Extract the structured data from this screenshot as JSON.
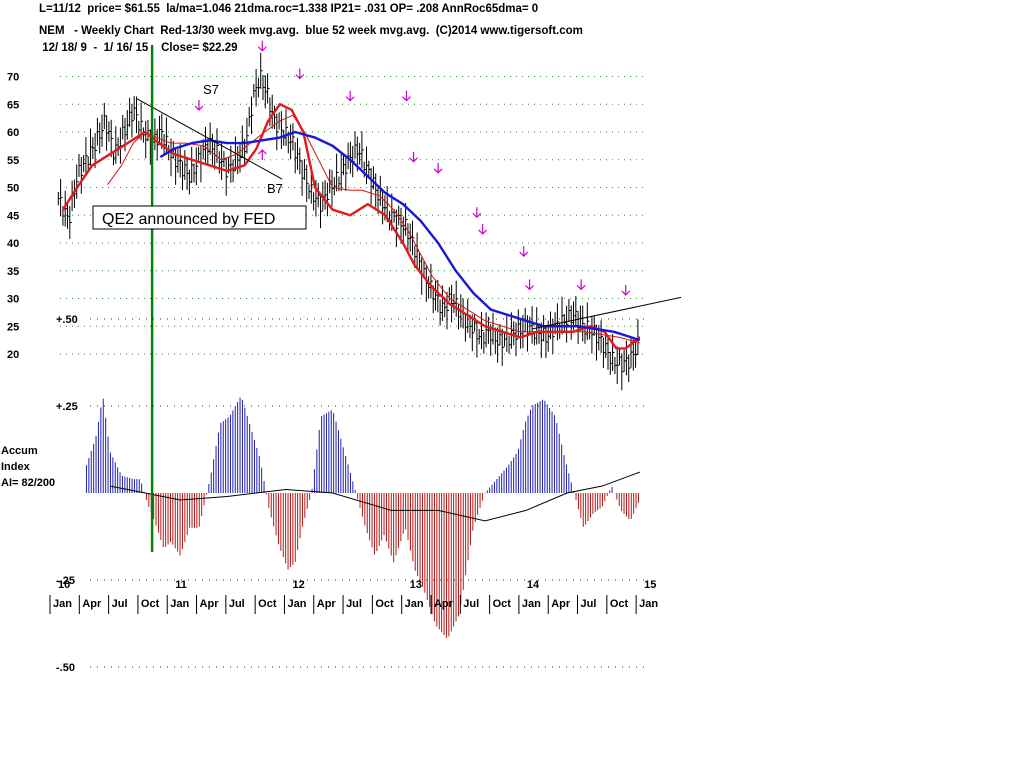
{
  "header": {
    "line1": "L=11/12  price= $61.55  la/ma=1.046 21dma.roc=1.338 IP21= .031 OP= .208 AnnRoc65dma= 0",
    "line2": "NEM   - Weekly Chart  Red-13/30 week mvg.avg.  blue 52 week mvg.avg.  (C)2014 www.tigersoft.com",
    "line3": " 12/ 18/ 9  -  1/ 16/ 15    Close= $22.29"
  },
  "chart_data": {
    "type": "line",
    "title": "NEM   - Weekly Chart",
    "price_axis": {
      "ticks": [
        20,
        25,
        30,
        35,
        40,
        45,
        50,
        55,
        60,
        65,
        70
      ],
      "tick_labels": [
        "20",
        "25",
        "30",
        "35",
        "40",
        "45",
        "50",
        "55",
        "60",
        "65",
        "70"
      ],
      "ylim": [
        15,
        75
      ]
    },
    "accum_axis": {
      "ticks": [
        0.5,
        0.25,
        -0.25,
        -0.5
      ],
      "tick_labels": [
        "+.50",
        "+.25",
        "-.25",
        "-.50"
      ],
      "ylim": [
        -0.5,
        0.5
      ]
    },
    "year_labels": [
      "10",
      "11",
      "12",
      "13",
      "14",
      "15"
    ],
    "month_labels": [
      "Jan",
      "Apr",
      "Jul",
      "Oct",
      "Jan",
      "Apr",
      "Jul",
      "Oct",
      "Jan",
      "Apr",
      "Jul",
      "Oct",
      "Jan",
      "Apr",
      "Jul",
      "Oct",
      "Jan",
      "Apr",
      "Jul",
      "Oct",
      "Jan"
    ],
    "time_range": [
      2010.0,
      2015.05
    ],
    "price_series": {
      "name": "NEM",
      "x": [
        2009.96,
        2010.05,
        2010.12,
        2010.2,
        2010.28,
        2010.36,
        2010.44,
        2010.52,
        2010.6,
        2010.68,
        2010.76,
        2010.84,
        2010.92,
        2011.0,
        2011.08,
        2011.16,
        2011.24,
        2011.32,
        2011.4,
        2011.48,
        2011.56,
        2011.62,
        2011.68,
        2011.74,
        2011.8,
        2011.88,
        2011.96,
        2012.04,
        2012.12,
        2012.2,
        2012.28,
        2012.36,
        2012.44,
        2012.52,
        2012.6,
        2012.68,
        2012.76,
        2012.84,
        2012.92,
        2013.0,
        2013.08,
        2013.16,
        2013.24,
        2013.32,
        2013.4,
        2013.48,
        2013.56,
        2013.64,
        2013.72,
        2013.8,
        2013.88,
        2013.96,
        2014.04,
        2014.12,
        2014.2,
        2014.28,
        2014.36,
        2014.44,
        2014.52,
        2014.6,
        2014.68,
        2014.76,
        2014.84,
        2014.92
      ],
      "y": [
        48,
        44,
        52,
        55,
        58,
        62,
        56,
        60,
        64,
        60,
        58,
        60,
        56,
        54,
        52,
        55,
        58,
        56,
        53,
        55,
        58,
        66,
        70,
        67,
        62,
        60,
        58,
        53,
        49,
        47,
        50,
        52,
        55,
        57,
        53,
        49,
        46,
        44,
        43,
        39,
        34,
        31,
        28,
        30,
        27,
        25,
        23,
        24,
        22,
        23,
        24,
        25,
        24,
        23,
        25,
        26,
        27,
        25,
        24,
        22,
        19,
        18,
        19,
        22.29
      ]
    },
    "ma_13": {
      "name": "Red-13/30 week mvg.avg.",
      "x": [
        2010.38,
        2010.5,
        2010.6,
        2010.7,
        2010.8,
        2010.92,
        2011.05,
        2011.2,
        2011.35,
        2011.48,
        2011.6,
        2011.72,
        2011.85,
        2011.96,
        2012.06,
        2012.18,
        2012.3,
        2012.45,
        2012.55,
        2012.7,
        2012.82,
        2012.95,
        2013.05,
        2013.15,
        2013.3,
        2013.45,
        2013.6,
        2013.75,
        2013.9,
        2014.02,
        2014.15,
        2014.3,
        2014.45,
        2014.6,
        2014.75,
        2014.92
      ],
      "y": [
        50.5,
        54,
        58,
        60,
        59,
        58,
        58,
        57.5,
        55,
        56,
        58,
        60,
        62,
        63,
        60,
        55,
        50,
        49.5,
        49.5,
        48.5,
        46,
        42,
        38,
        34,
        30,
        28,
        26,
        25,
        24,
        24,
        24,
        24,
        24,
        23.5,
        23,
        22
      ]
    },
    "ma_30": {
      "name": "Red-13/30 week mvg.avg.",
      "x": [
        2010.0,
        2010.12,
        2010.25,
        2010.4,
        2010.55,
        2010.7,
        2010.82,
        2010.95,
        2011.1,
        2011.25,
        2011.4,
        2011.55,
        2011.65,
        2011.75,
        2011.85,
        2011.95,
        2012.05,
        2012.15,
        2012.3,
        2012.45,
        2012.6,
        2012.75,
        2012.9,
        2013.0,
        2013.15,
        2013.3,
        2013.45,
        2013.6,
        2013.75,
        2013.9,
        2014.05,
        2014.2,
        2014.35,
        2014.5,
        2014.62,
        2014.72,
        2014.8,
        2014.92
      ],
      "y": [
        46,
        50,
        54,
        56,
        58,
        60,
        58,
        56,
        55,
        54,
        53,
        54,
        57,
        62,
        65,
        64,
        60,
        50,
        46,
        45,
        47,
        45,
        40,
        36,
        32,
        29,
        27,
        25,
        24,
        23,
        24,
        24,
        24,
        25,
        24,
        21,
        21,
        23
      ]
    },
    "ma_52": {
      "name": "blue 52 week mvg.avg.",
      "x": [
        2010.83,
        2010.95,
        2011.1,
        2011.25,
        2011.4,
        2011.55,
        2011.7,
        2011.85,
        2011.98,
        2012.15,
        2012.3,
        2012.45,
        2012.6,
        2012.75,
        2012.9,
        2013.05,
        2013.2,
        2013.35,
        2013.5,
        2013.65,
        2013.8,
        2013.95,
        2014.1,
        2014.25,
        2014.4,
        2014.55,
        2014.7,
        2014.85,
        2014.92
      ],
      "y": [
        55.5,
        57,
        58,
        58.5,
        58,
        58,
        58.5,
        59,
        60,
        59,
        57.5,
        55,
        52,
        49,
        47,
        44,
        40,
        35,
        31,
        28,
        27,
        26,
        25,
        25,
        25,
        24.5,
        24,
        23,
        22.5
      ]
    },
    "accum_index": {
      "label": [
        "Accum",
        "Index",
        "AI= 82/200"
      ],
      "x": [
        2010.2,
        2010.28,
        2010.34,
        2010.4,
        2010.5,
        2010.6,
        2010.66,
        2010.72,
        2010.78,
        2010.86,
        2010.92,
        2011.0,
        2011.08,
        2011.16,
        2011.26,
        2011.34,
        2011.42,
        2011.52,
        2011.6,
        2011.68,
        2011.76,
        2011.84,
        2011.92,
        2011.98,
        2012.04,
        2012.12,
        2012.2,
        2012.3,
        2012.4,
        2012.5,
        2012.58,
        2012.66,
        2012.74,
        2012.82,
        2012.92,
        2013.0,
        2013.08,
        2013.18,
        2013.28,
        2013.38,
        2013.5,
        2013.6,
        2013.7,
        2013.8,
        2013.88,
        2013.94,
        2014.0,
        2014.1,
        2014.2,
        2014.28,
        2014.36,
        2014.44,
        2014.52,
        2014.6,
        2014.68,
        2014.76,
        2014.84,
        2014.92
      ],
      "y": [
        0.08,
        0.16,
        0.28,
        0.12,
        0.05,
        0.04,
        0.04,
        -0.03,
        -0.08,
        -0.16,
        -0.14,
        -0.18,
        -0.1,
        -0.1,
        0.05,
        0.2,
        0.22,
        0.28,
        0.19,
        0.1,
        -0.05,
        -0.15,
        -0.22,
        -0.2,
        -0.1,
        0.0,
        0.22,
        0.24,
        0.12,
        0.0,
        -0.1,
        -0.18,
        -0.12,
        -0.2,
        -0.1,
        -0.22,
        -0.28,
        -0.38,
        -0.42,
        -0.35,
        -0.1,
        0.0,
        0.04,
        0.08,
        0.12,
        0.2,
        0.25,
        0.27,
        0.22,
        0.1,
        0.0,
        -0.1,
        -0.06,
        -0.04,
        0.02,
        -0.05,
        -0.08,
        -0.02
      ]
    },
    "signals": {
      "up_arrow_x": [
        2011.16,
        2011.7
      ],
      "down_arrow_x": [
        2011.7,
        2012.02,
        2012.45,
        2012.93,
        2012.99,
        2013.2,
        2013.53,
        2013.58,
        2013.93,
        2013.98,
        2014.42,
        2014.8
      ],
      "labels": [
        "S7",
        "B7"
      ]
    },
    "annotation": "QE2 announced by FED",
    "event_line_x": 2010.76
  },
  "colors": {
    "ma_13": "#d01818",
    "ma_30": "#e01c1c",
    "ma_52": "#1818d8",
    "accum_pos": "#2020b0",
    "accum_neg": "#b01818",
    "event_line": "#008000",
    "arrow": "#d000d0",
    "price": "#000000"
  }
}
